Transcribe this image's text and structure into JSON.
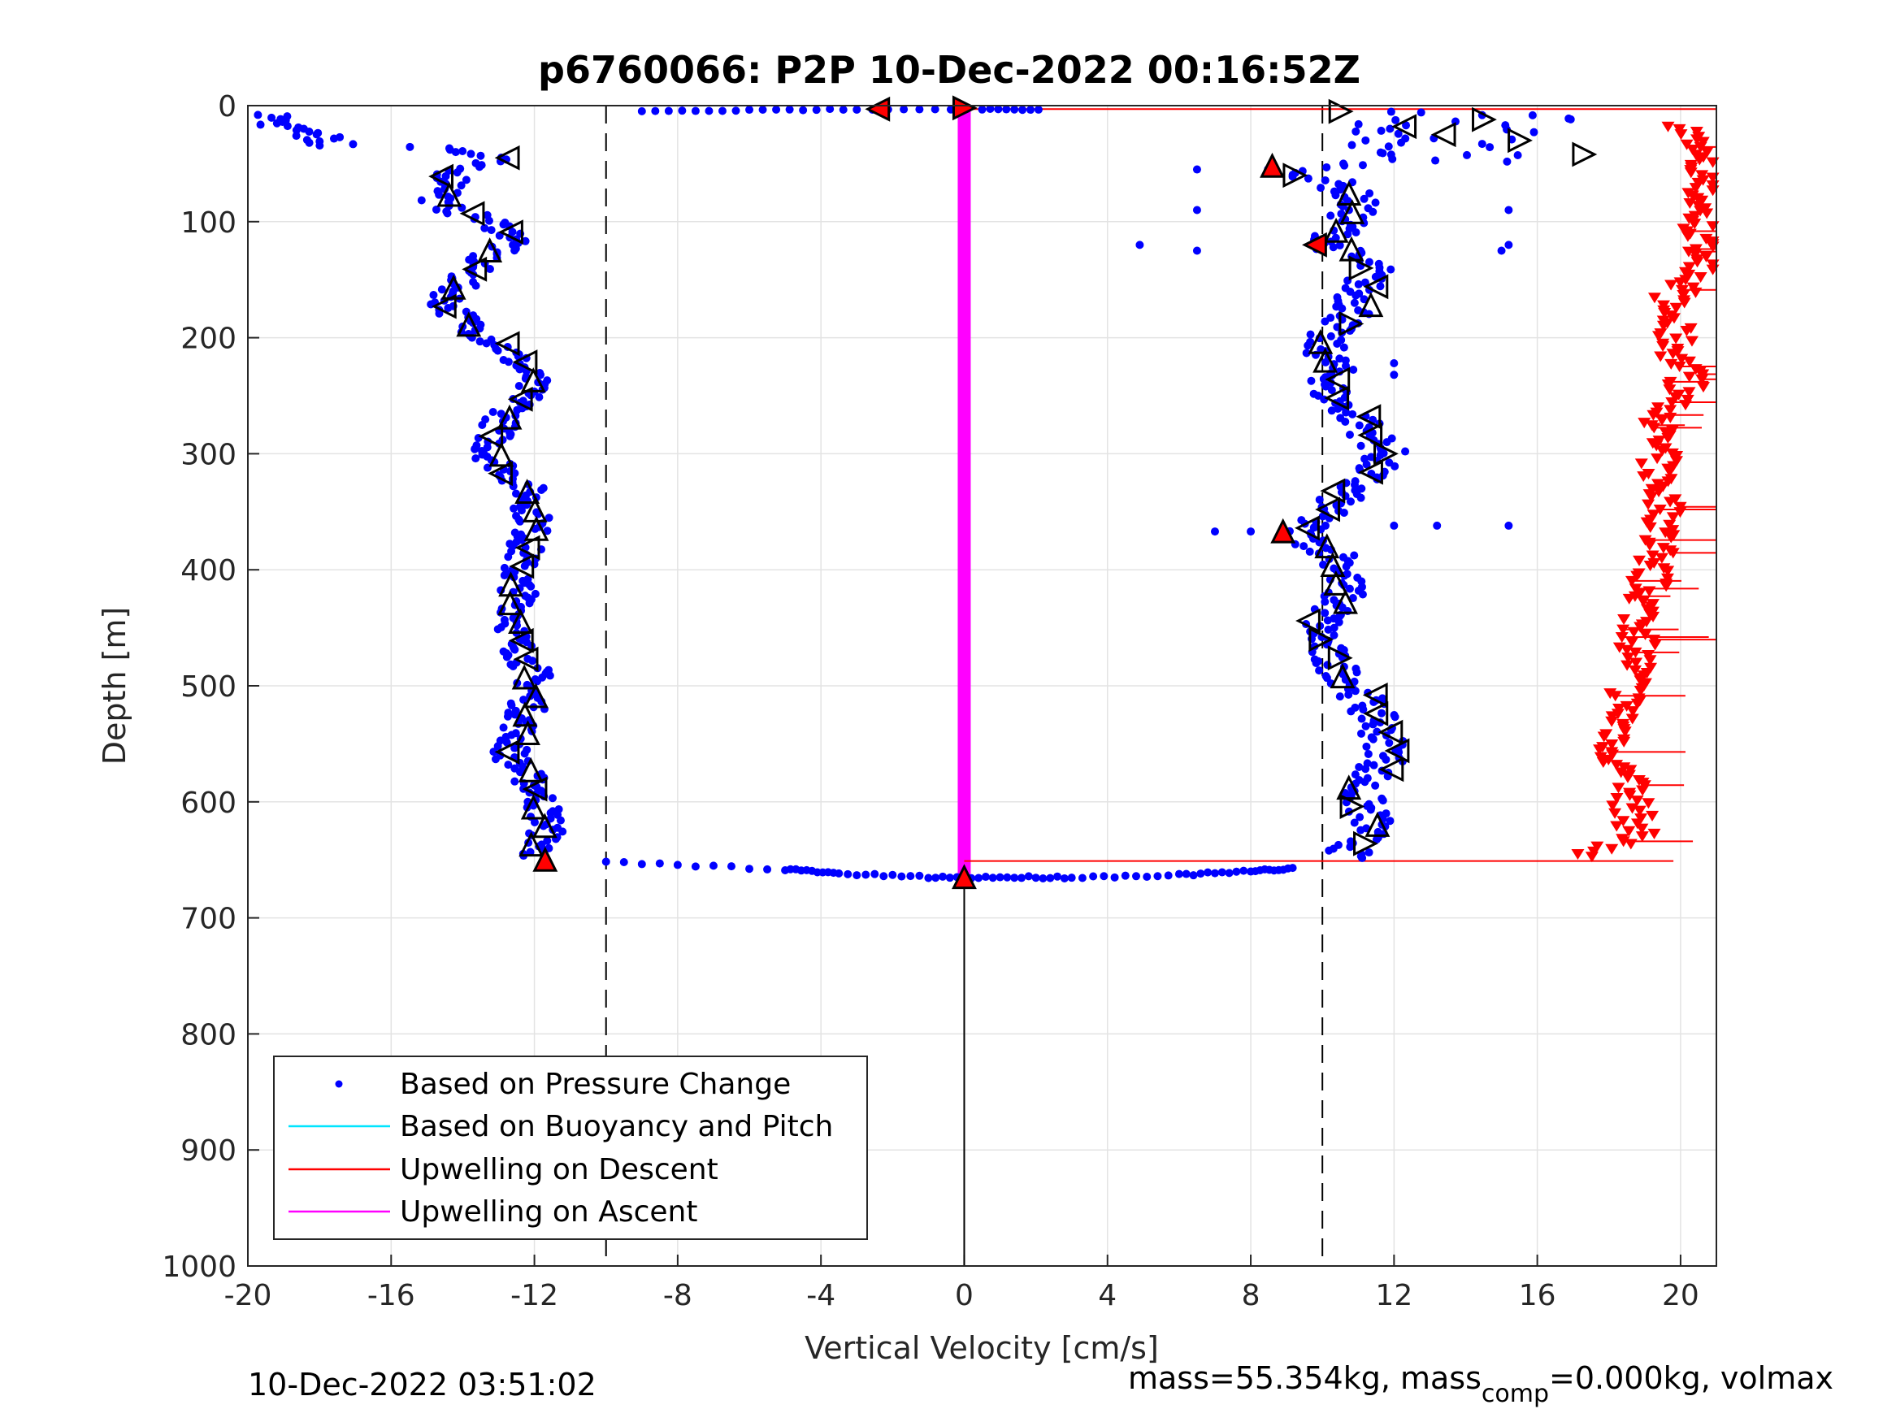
{
  "chart_data": {
    "type": "scatter",
    "title": "p6760066: P2P 10-Dec-2022 00:16:52Z",
    "xlabel": "Vertical Velocity [cm/s]",
    "ylabel": "Depth [m]",
    "xlim": [
      -20,
      21
    ],
    "ylim": [
      0,
      1000
    ],
    "y_reversed": true,
    "xticks": [
      "-20",
      "-16",
      "-12",
      "-8",
      "-4",
      "0",
      "4",
      "8",
      "12",
      "16",
      "20"
    ],
    "yticks": [
      "0",
      "100",
      "200",
      "300",
      "400",
      "500",
      "600",
      "700",
      "800",
      "900",
      "1000"
    ],
    "grid": true,
    "legend_position": "bottom-left",
    "legend": [
      {
        "label": "Based on Pressure Change",
        "color": "#0000ff",
        "marker": "dot"
      },
      {
        "label": "Based on Buoyancy and Pitch",
        "color": "#00e5ff",
        "marker": "line"
      },
      {
        "label": "Upwelling on Descent",
        "color": "#ff0000",
        "marker": "line"
      },
      {
        "label": "Upwelling on Ascent",
        "color": "#ff00ff",
        "marker": "line"
      }
    ],
    "reference_lines": {
      "dashed_x": [
        -10,
        10
      ],
      "solid_x": 0,
      "solid_x_depth_range": [
        665,
        1000
      ]
    },
    "ascent_upwelling": {
      "x": 0,
      "depth_range": [
        2,
        665
      ],
      "color": "#ff00ff"
    },
    "descent_pressure_velocity": [
      {
        "depth": 15,
        "v": -19.6
      },
      {
        "depth": 20,
        "v": -18.8
      },
      {
        "depth": 25,
        "v": -18.2
      },
      {
        "depth": 35,
        "v": -17.5
      },
      {
        "depth": 30,
        "v": -16.6
      },
      {
        "depth": 45,
        "v": -13.0
      },
      {
        "depth": 55,
        "v": -14.3
      },
      {
        "depth": 70,
        "v": -14.2
      },
      {
        "depth": 85,
        "v": -14.8
      },
      {
        "depth": 100,
        "v": -13.2
      },
      {
        "depth": 115,
        "v": -12.4
      },
      {
        "depth": 130,
        "v": -13.4
      },
      {
        "depth": 150,
        "v": -14.0
      },
      {
        "depth": 170,
        "v": -14.5
      },
      {
        "depth": 190,
        "v": -13.8
      },
      {
        "depth": 210,
        "v": -12.8
      },
      {
        "depth": 235,
        "v": -12.1
      },
      {
        "depth": 255,
        "v": -12.3
      },
      {
        "depth": 270,
        "v": -12.9
      },
      {
        "depth": 300,
        "v": -13.3
      },
      {
        "depth": 330,
        "v": -12.2
      },
      {
        "depth": 360,
        "v": -12.0
      },
      {
        "depth": 400,
        "v": -12.5
      },
      {
        "depth": 430,
        "v": -12.4
      },
      {
        "depth": 460,
        "v": -12.6
      },
      {
        "depth": 490,
        "v": -12.0
      },
      {
        "depth": 520,
        "v": -12.2
      },
      {
        "depth": 560,
        "v": -12.7
      },
      {
        "depth": 590,
        "v": -11.9
      },
      {
        "depth": 620,
        "v": -11.6
      },
      {
        "depth": 645,
        "v": -11.9
      }
    ],
    "ascent_pressure_velocity": [
      {
        "depth": 5,
        "v": 10.8
      },
      {
        "depth": 20,
        "v": 13.0
      },
      {
        "depth": 40,
        "v": 15.2
      },
      {
        "depth": 55,
        "v": 9.0
      },
      {
        "depth": 65,
        "v": 10.2
      },
      {
        "depth": 80,
        "v": 11.0
      },
      {
        "depth": 100,
        "v": 10.7
      },
      {
        "depth": 120,
        "v": 10.2
      },
      {
        "depth": 140,
        "v": 11.4
      },
      {
        "depth": 160,
        "v": 11.0
      },
      {
        "depth": 180,
        "v": 10.9
      },
      {
        "depth": 200,
        "v": 9.9
      },
      {
        "depth": 225,
        "v": 10.3
      },
      {
        "depth": 250,
        "v": 10.2
      },
      {
        "depth": 270,
        "v": 11.0
      },
      {
        "depth": 300,
        "v": 11.8
      },
      {
        "depth": 330,
        "v": 10.8
      },
      {
        "depth": 370,
        "v": 9.3
      },
      {
        "depth": 390,
        "v": 10.6
      },
      {
        "depth": 420,
        "v": 10.6
      },
      {
        "depth": 450,
        "v": 9.9
      },
      {
        "depth": 475,
        "v": 10.1
      },
      {
        "depth": 500,
        "v": 10.9
      },
      {
        "depth": 530,
        "v": 11.5
      },
      {
        "depth": 560,
        "v": 11.9
      },
      {
        "depth": 590,
        "v": 11.0
      },
      {
        "depth": 620,
        "v": 11.4
      },
      {
        "depth": 648,
        "v": 10.6
      }
    ],
    "surface_transition_velocity": [
      {
        "depth": 5,
        "v": -9.0
      },
      {
        "depth": 4,
        "v": -6.0
      },
      {
        "depth": 3,
        "v": -3.0
      },
      {
        "depth": 3,
        "v": 0.5
      },
      {
        "depth": 4,
        "v": 2.3
      }
    ],
    "bottom_transition_velocity": [
      {
        "depth": 652,
        "v": -10.0
      },
      {
        "depth": 658,
        "v": -5.0
      },
      {
        "depth": 662,
        "v": -3.5
      },
      {
        "depth": 665,
        "v": -1.0
      },
      {
        "depth": 665,
        "v": 1.0
      },
      {
        "depth": 665,
        "v": 3.0
      },
      {
        "depth": 663,
        "v": 6.0
      },
      {
        "depth": 660,
        "v": 8.0
      },
      {
        "depth": 657,
        "v": 9.3
      }
    ],
    "descent_upwelling_red": [
      {
        "depth": 25,
        "v": 20.2
      },
      {
        "depth": 40,
        "v": 20.4
      },
      {
        "depth": 70,
        "v": 20.6
      },
      {
        "depth": 100,
        "v": 20.5
      },
      {
        "depth": 140,
        "v": 20.8
      },
      {
        "depth": 170,
        "v": 19.6
      },
      {
        "depth": 200,
        "v": 19.8
      },
      {
        "depth": 240,
        "v": 20.2
      },
      {
        "depth": 280,
        "v": 19.3
      },
      {
        "depth": 320,
        "v": 19.4
      },
      {
        "depth": 360,
        "v": 19.6
      },
      {
        "depth": 400,
        "v": 19.2
      },
      {
        "depth": 440,
        "v": 18.9
      },
      {
        "depth": 480,
        "v": 18.8
      },
      {
        "depth": 520,
        "v": 18.4
      },
      {
        "depth": 560,
        "v": 18.2
      },
      {
        "depth": 600,
        "v": 18.6
      },
      {
        "depth": 630,
        "v": 18.8
      },
      {
        "depth": 645,
        "v": 17.6
      }
    ],
    "footer_date": "10-Dec-2022 03:51:02",
    "footer_mass": "mass=55.354kg, mass",
    "footer_mass_sub": "comp",
    "footer_mass_rest": "=0.000kg, volmax"
  }
}
